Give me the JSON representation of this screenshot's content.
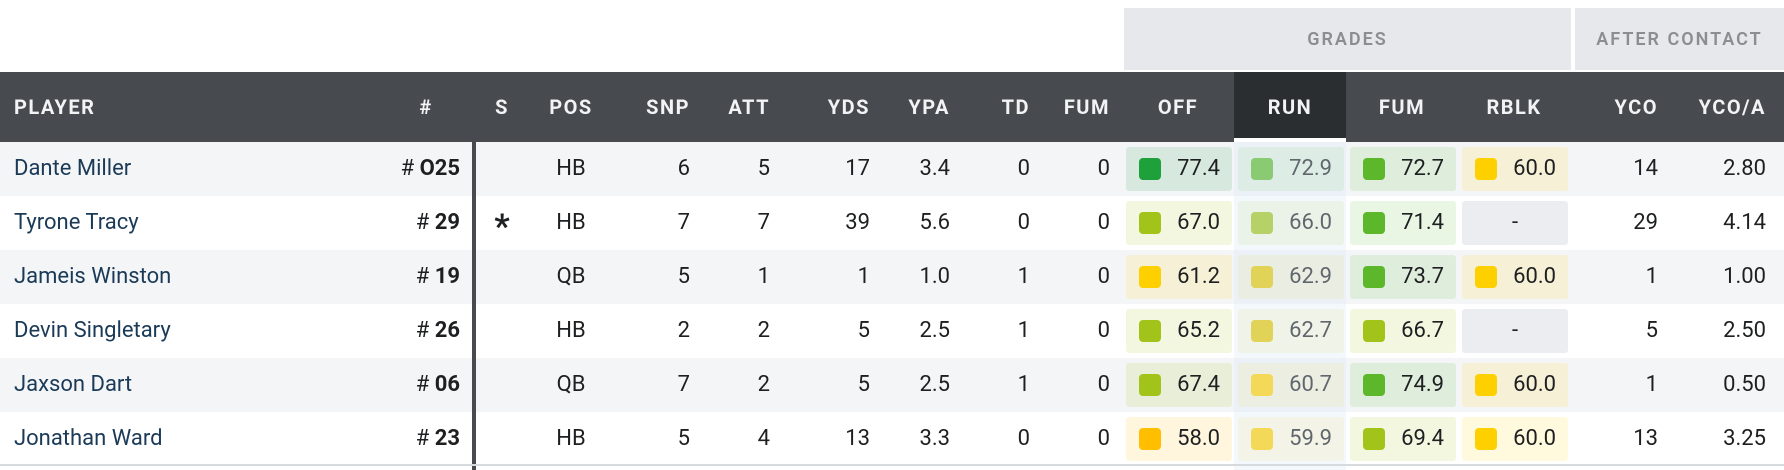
{
  "group_headers": {
    "grades": "GRADES",
    "after_contact": "AFTER CONTACT"
  },
  "columns": {
    "player": "PLAYER",
    "num": "#",
    "s": "S",
    "pos": "POS",
    "snp": "SNP",
    "att": "ATT",
    "yds": "YDS",
    "ypa": "YPA",
    "td": "TD",
    "fum": "FUM",
    "off": "OFF",
    "run": "RUN",
    "fum_grade": "FUM",
    "rblk": "RBLK",
    "yco": "YCO",
    "ycoa": "YCO/A"
  },
  "sorted_column": "RUN",
  "grade_colors": {
    "dark_green": "#1ea13b",
    "green": "#5cb82a",
    "yellow_green": "#a2c41a",
    "gold": "#e3c700",
    "yellow": "#ffd000",
    "orange": "#ffbf00"
  },
  "rows": [
    {
      "name": "Dante Miller",
      "num_prefix": "# ",
      "num": "O25",
      "s": "",
      "pos": "HB",
      "snp": "6",
      "att": "5",
      "yds": "17",
      "ypa": "3.4",
      "td": "0",
      "fum": "0",
      "off": "77.4",
      "run": "72.9",
      "fum_grade": "72.7",
      "rblk": "60.0",
      "yco": "14",
      "ycoa": "2.80",
      "colors": {
        "off": "#1ea13b",
        "run": "#5cb82a",
        "fum_grade": "#5cb82a",
        "rblk": "#ffd000"
      }
    },
    {
      "name": "Tyrone Tracy",
      "num_prefix": "# ",
      "num": "29",
      "s": "*",
      "pos": "HB",
      "snp": "7",
      "att": "7",
      "yds": "39",
      "ypa": "5.6",
      "td": "0",
      "fum": "0",
      "off": "67.0",
      "run": "66.0",
      "fum_grade": "71.4",
      "rblk": "-",
      "yco": "29",
      "ycoa": "4.14",
      "colors": {
        "off": "#a2c41a",
        "run": "#a2c41a",
        "fum_grade": "#5cb82a",
        "rblk": ""
      }
    },
    {
      "name": "Jameis Winston",
      "num_prefix": "# ",
      "num": "19",
      "s": "",
      "pos": "QB",
      "snp": "5",
      "att": "1",
      "yds": "1",
      "ypa": "1.0",
      "td": "1",
      "fum": "0",
      "off": "61.2",
      "run": "62.9",
      "fum_grade": "73.7",
      "rblk": "60.0",
      "yco": "1",
      "ycoa": "1.00",
      "colors": {
        "off": "#ffd000",
        "run": "#e3c700",
        "fum_grade": "#5cb82a",
        "rblk": "#ffd000"
      }
    },
    {
      "name": "Devin Singletary",
      "num_prefix": "# ",
      "num": "26",
      "s": "",
      "pos": "HB",
      "snp": "2",
      "att": "2",
      "yds": "5",
      "ypa": "2.5",
      "td": "1",
      "fum": "0",
      "off": "65.2",
      "run": "62.7",
      "fum_grade": "66.7",
      "rblk": "-",
      "yco": "5",
      "ycoa": "2.50",
      "colors": {
        "off": "#a2c41a",
        "run": "#e3c700",
        "fum_grade": "#a2c41a",
        "rblk": ""
      }
    },
    {
      "name": "Jaxson Dart",
      "num_prefix": "# ",
      "num": "06",
      "s": "",
      "pos": "QB",
      "snp": "7",
      "att": "2",
      "yds": "5",
      "ypa": "2.5",
      "td": "1",
      "fum": "0",
      "off": "67.4",
      "run": "60.7",
      "fum_grade": "74.9",
      "rblk": "60.0",
      "yco": "1",
      "ycoa": "0.50",
      "colors": {
        "off": "#a2c41a",
        "run": "#ffd000",
        "fum_grade": "#5cb82a",
        "rblk": "#ffd000"
      }
    },
    {
      "name": "Jonathan Ward",
      "num_prefix": "# ",
      "num": "23",
      "s": "",
      "pos": "HB",
      "snp": "5",
      "att": "4",
      "yds": "13",
      "ypa": "3.3",
      "td": "0",
      "fum": "0",
      "off": "58.0",
      "run": "59.9",
      "fum_grade": "69.4",
      "rblk": "60.0",
      "yco": "13",
      "ycoa": "3.25",
      "colors": {
        "off": "#ffbf00",
        "run": "#ffd000",
        "fum_grade": "#a2c41a",
        "rblk": "#ffd000"
      }
    }
  ]
}
